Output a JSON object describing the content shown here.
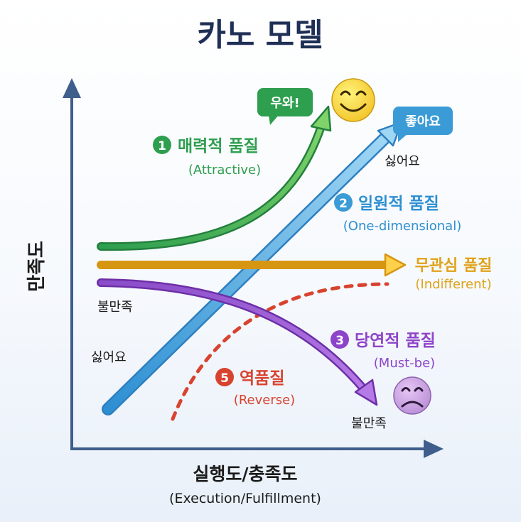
{
  "title": "카노 모델",
  "axes": {
    "y_label": "만족도",
    "x_label": "실행도/충족도",
    "x_sublabel": "(Execution/Fulfillment)"
  },
  "curves": [
    {
      "id": "attractive",
      "number": "1",
      "name": "매력적 품질",
      "english": "(Attractive)",
      "color": "#2e9e4f",
      "bubble": "우와!"
    },
    {
      "id": "one-dimensional",
      "number": "2",
      "name": "일원적 품질",
      "english": "(One-dimensional)",
      "color": "#3b9bd6",
      "bubble": "좋아요",
      "top_label": "싫어요",
      "bottom_label": "싫어요"
    },
    {
      "id": "indifferent",
      "name": "무관심 품질",
      "english": "(Indifferent)",
      "color": "#e0a21a"
    },
    {
      "id": "must-be",
      "number": "3",
      "name": "당연적 품질",
      "english": "(Must-be)",
      "color": "#8e44c9",
      "start_label": "불만족",
      "end_label": "불만족"
    },
    {
      "id": "reverse",
      "number": "5",
      "name": "역품질",
      "english": "(Reverse)",
      "color": "#d8432f"
    }
  ],
  "icons": {
    "happy": "smiley-face-icon",
    "sad": "sad-face-icon"
  },
  "colors": {
    "title": "#1f2f55",
    "axis": "#3f5e8c",
    "text": "#1b1b1b"
  }
}
